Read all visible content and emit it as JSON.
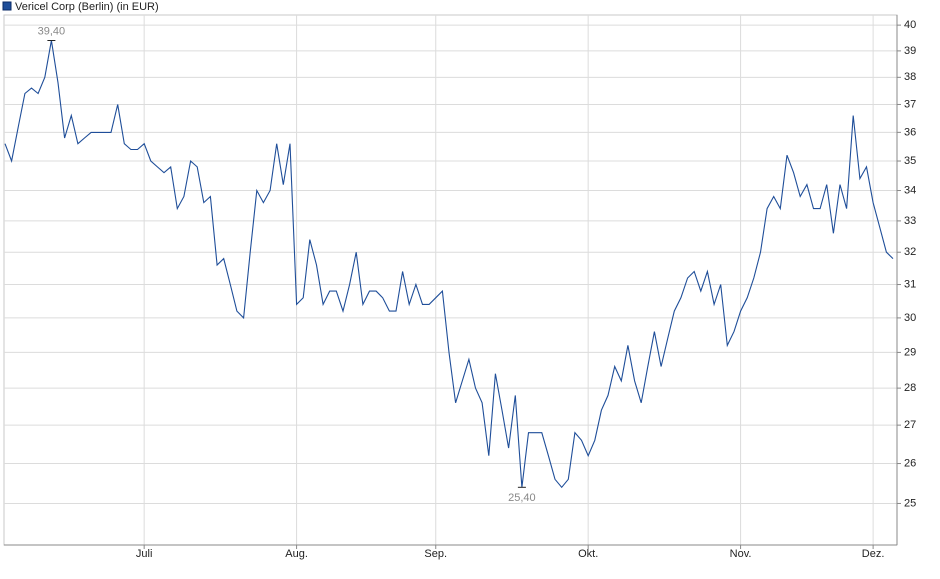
{
  "chart_data": {
    "type": "line",
    "series": [
      {
        "name": "Vericel Corp (Berlin) (in EUR)",
        "color": "#1f4e99",
        "values": [
          35.6,
          35.0,
          36.2,
          37.4,
          37.6,
          37.4,
          38.0,
          39.4,
          37.8,
          35.8,
          36.6,
          35.6,
          35.8,
          36.0,
          36.0,
          36.0,
          36.0,
          37.0,
          35.6,
          35.4,
          35.4,
          35.6,
          35.0,
          34.8,
          34.6,
          34.8,
          33.4,
          33.8,
          35.0,
          34.8,
          33.6,
          33.8,
          31.6,
          31.8,
          31.0,
          30.2,
          30.0,
          32.0,
          34.0,
          33.6,
          34.0,
          35.6,
          34.2,
          35.6,
          30.4,
          30.6,
          32.4,
          31.6,
          30.4,
          30.8,
          30.8,
          30.2,
          31.0,
          32.0,
          30.4,
          30.8,
          30.8,
          30.6,
          30.2,
          30.2,
          31.4,
          30.4,
          31.0,
          30.4,
          30.4,
          30.6,
          30.8,
          29.0,
          27.6,
          28.2,
          28.8,
          28.0,
          27.6,
          26.2,
          28.4,
          27.4,
          26.4,
          27.8,
          25.4,
          26.8,
          26.8,
          26.8,
          26.2,
          25.6,
          25.4,
          25.6,
          26.8,
          26.6,
          26.2,
          26.6,
          27.4,
          27.8,
          28.6,
          28.2,
          29.2,
          28.2,
          27.6,
          28.6,
          29.6,
          28.6,
          29.4,
          30.2,
          30.6,
          31.2,
          31.4,
          30.8,
          31.4,
          30.4,
          31.0,
          29.2,
          29.6,
          30.2,
          30.6,
          31.2,
          32.0,
          33.4,
          33.8,
          33.4,
          35.2,
          34.6,
          33.8,
          34.2,
          33.4,
          33.4,
          34.2,
          32.6,
          34.2,
          33.4,
          36.6,
          34.4,
          34.8,
          33.6,
          32.8,
          32.0,
          31.8
        ]
      }
    ],
    "xlim": [
      0,
      134
    ],
    "xticks": [
      {
        "value": 21,
        "label": "Juli"
      },
      {
        "value": 44,
        "label": "Aug."
      },
      {
        "value": 65,
        "label": "Sep."
      },
      {
        "value": 88,
        "label": "Okt."
      },
      {
        "value": 111,
        "label": "Nov."
      },
      {
        "value": 131,
        "label": "Dez."
      }
    ],
    "ylim": [
      24,
      40.4
    ],
    "yticks": [
      25,
      26,
      27,
      28,
      29,
      30,
      31,
      32,
      33,
      34,
      35,
      36,
      37,
      38,
      39,
      40
    ],
    "log_scale": true,
    "grid": true,
    "legend": "top-left",
    "annotations": [
      {
        "x": 7,
        "y": 39.4,
        "label": "39,40"
      },
      {
        "x": 78,
        "y": 25.4,
        "label": "25,40"
      }
    ]
  }
}
